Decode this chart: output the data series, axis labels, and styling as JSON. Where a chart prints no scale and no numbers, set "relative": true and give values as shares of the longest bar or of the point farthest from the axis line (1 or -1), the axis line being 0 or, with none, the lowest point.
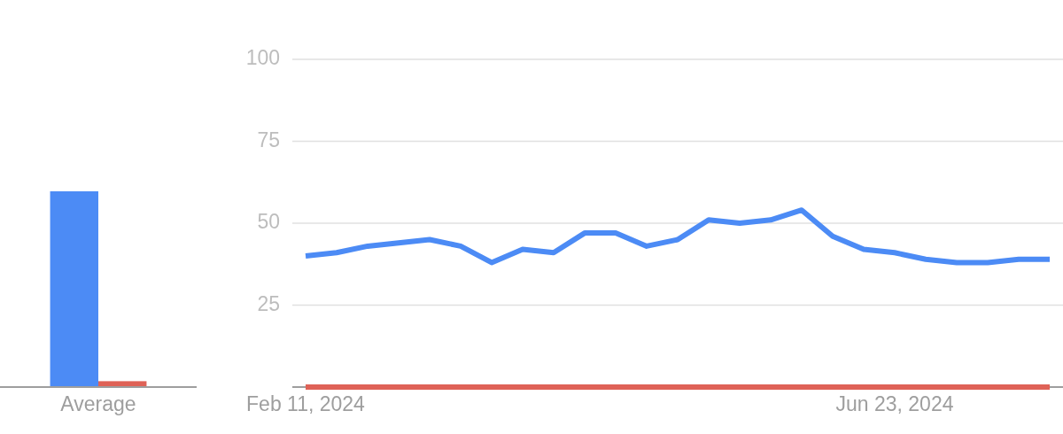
{
  "chart_data": [
    {
      "type": "bar",
      "categories": [
        "Average"
      ],
      "series": [
        {
          "color": "#4c8bf5",
          "values": [
            1
          ]
        },
        {
          "color": "#df6257",
          "values": [
            0.03
          ]
        }
      ],
      "relative": true
    },
    {
      "type": "line",
      "x": [
        "2024-02-11",
        "2024-02-18",
        "2024-02-25",
        "2024-03-03",
        "2024-03-10",
        "2024-03-17",
        "2024-03-24",
        "2024-03-31",
        "2024-04-07",
        "2024-04-14",
        "2024-04-21",
        "2024-04-28",
        "2024-05-05",
        "2024-05-12",
        "2024-05-19",
        "2024-05-26",
        "2024-06-02",
        "2024-06-09",
        "2024-06-16",
        "2024-06-23",
        "2024-06-30",
        "2024-07-07",
        "2024-07-14",
        "2024-07-21",
        "2024-07-28"
      ],
      "series": [
        {
          "color": "#4c8bf5",
          "values": [
            40,
            41,
            43,
            44,
            45,
            43,
            38,
            42,
            41,
            47,
            47,
            43,
            45,
            51,
            50,
            51,
            54,
            46,
            42,
            41,
            39,
            38,
            38,
            39,
            39
          ]
        },
        {
          "color": "#df6257",
          "values": [
            0,
            0,
            0,
            0,
            0,
            0,
            0,
            0,
            0,
            0,
            0,
            0,
            0,
            0,
            0,
            0,
            0,
            0,
            0,
            0,
            0,
            0,
            0,
            0,
            0
          ]
        }
      ],
      "xlim": [
        "2024-02-08",
        "2024-07-31"
      ],
      "xticks": [
        {
          "value": "2024-02-11",
          "label": "Feb 11, 2024"
        },
        {
          "value": "2024-06-23",
          "label": "Jun 23, 2024"
        }
      ],
      "ylim": [
        0,
        100
      ],
      "yticks": [
        25,
        50,
        75,
        100
      ],
      "grid": "y"
    }
  ]
}
